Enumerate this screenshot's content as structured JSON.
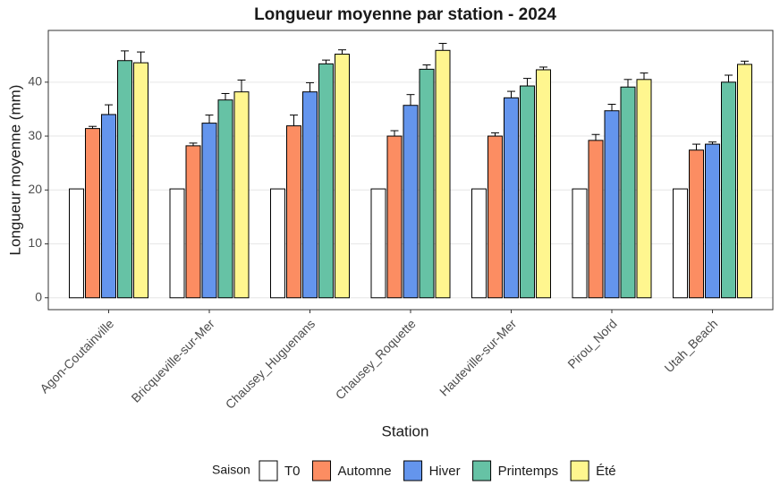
{
  "chart_data": {
    "type": "bar",
    "title": "Longueur moyenne par station - 2024",
    "x_label": "Station",
    "y_label": "Longueur moyenne (mm)",
    "legend_title": "Saison",
    "categories": [
      "Agon-Coutainville",
      "Bricqueville-sur-Mer",
      "Chausey_Huguenans",
      "Chausey_Roquette",
      "Hauteville-sur-Mer",
      "Pirou_Nord",
      "Utah_Beach"
    ],
    "series": [
      {
        "name": "T0",
        "color": "#ffffff",
        "values": [
          20.2,
          20.2,
          20.2,
          20.2,
          20.2,
          20.2,
          20.2
        ],
        "errors": [
          null,
          null,
          null,
          null,
          null,
          null,
          null
        ]
      },
      {
        "name": "Automne",
        "color": "#fc8d62",
        "values": [
          31.4,
          28.2,
          31.9,
          30.0,
          30.0,
          29.2,
          27.4
        ],
        "errors": [
          0.4,
          0.5,
          2.0,
          1.0,
          0.6,
          1.1,
          1.1
        ]
      },
      {
        "name": "Hiver",
        "color": "#6495ed",
        "values": [
          34.0,
          32.4,
          38.2,
          35.7,
          37.1,
          34.7,
          28.5
        ],
        "errors": [
          1.8,
          1.5,
          1.7,
          2.0,
          1.2,
          1.2,
          0.4
        ]
      },
      {
        "name": "Printemps",
        "color": "#66c2a5",
        "values": [
          44.0,
          36.7,
          43.4,
          42.4,
          39.3,
          39.1,
          40.0
        ],
        "errors": [
          1.8,
          1.2,
          0.7,
          0.8,
          1.4,
          1.4,
          1.3
        ]
      },
      {
        "name": "Été",
        "color": "#fff68f",
        "values": [
          43.6,
          38.2,
          45.2,
          45.9,
          42.3,
          40.5,
          43.3
        ],
        "errors": [
          2.0,
          2.2,
          0.8,
          1.3,
          0.5,
          1.2,
          0.6
        ]
      }
    ],
    "ylim": [
      -2.2,
      49.6
    ],
    "yticks": [
      0,
      10,
      20,
      30,
      40
    ],
    "grid": true,
    "legend_position": "bottom"
  }
}
